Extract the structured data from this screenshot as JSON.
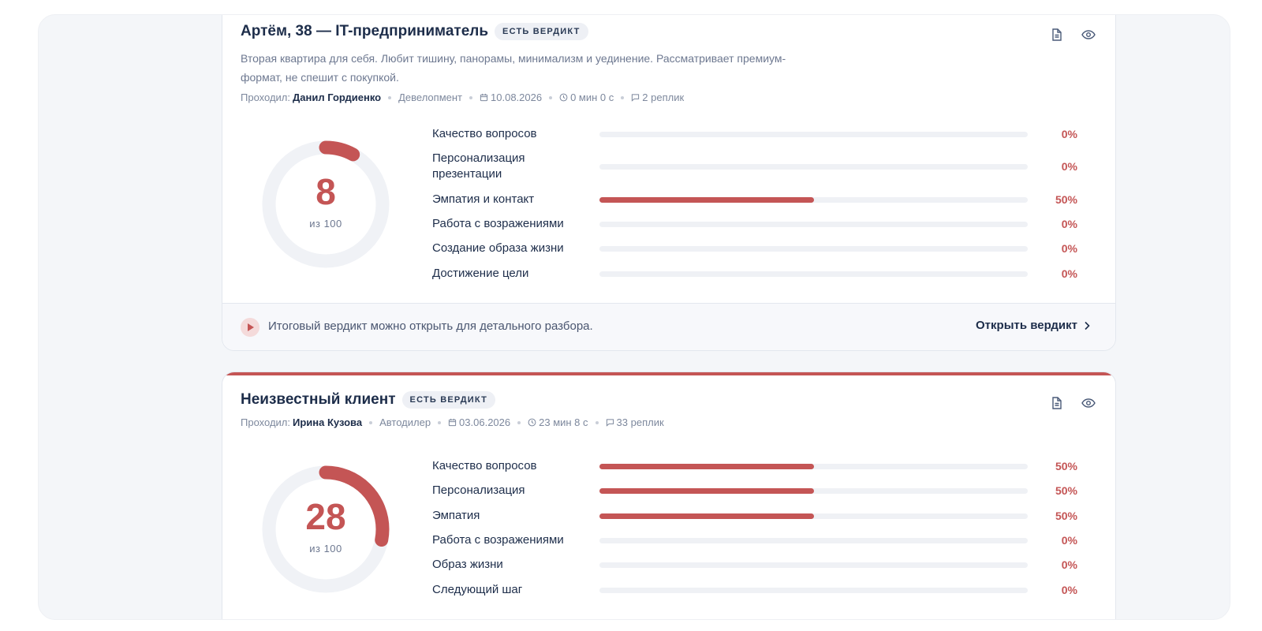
{
  "colors": {
    "accent": "#c45555",
    "track": "#eff1f5",
    "text": "#1d2d4a",
    "muted": "#6d7890"
  },
  "cards": [
    {
      "title": "Артём, 38 — IT-предприниматель",
      "badge": "ЕСТЬ ВЕРДИКТ",
      "description": "Вторая квартира для себя. Любит тишину, панорамы, минимализм и уединение. Рассматривает премиум-формат, не спешит с покупкой.",
      "meta": {
        "passed_label": "Проходил:",
        "person": "Данил Гордиенко",
        "department": "Девелопмент",
        "date": "10.08.2026",
        "duration": "0 мин 0 с",
        "replies": "2 реплик"
      },
      "score": "8",
      "score_of": "из 100",
      "score_value": 8,
      "metrics": [
        {
          "label": "Качество вопросов",
          "value": 0,
          "pct": "0%"
        },
        {
          "label": "Персонализация презентации",
          "value": 0,
          "pct": "0%"
        },
        {
          "label": "Эмпатия и контакт",
          "value": 50,
          "pct": "50%"
        },
        {
          "label": "Работа с возражениями",
          "value": 0,
          "pct": "0%"
        },
        {
          "label": "Создание образа жизни",
          "value": 0,
          "pct": "0%"
        },
        {
          "label": "Достижение цели",
          "value": 0,
          "pct": "0%"
        }
      ],
      "footer": {
        "text": "Итоговый вердикт можно открыть для детального разбора.",
        "link": "Открыть вердикт"
      }
    },
    {
      "title": "Неизвестный клиент",
      "badge": "ЕСТЬ ВЕРДИКТ",
      "meta": {
        "passed_label": "Проходил:",
        "person": "Ирина Кузова",
        "department": "Автодилер",
        "date": "03.06.2026",
        "duration": "23 мин 8 с",
        "replies": "33 реплик"
      },
      "score": "28",
      "score_of": "из 100",
      "score_value": 28,
      "metrics": [
        {
          "label": "Качество вопросов",
          "value": 50,
          "pct": "50%"
        },
        {
          "label": "Персонализация",
          "value": 50,
          "pct": "50%"
        },
        {
          "label": "Эмпатия",
          "value": 50,
          "pct": "50%"
        },
        {
          "label": "Работа с возражениями",
          "value": 0,
          "pct": "0%"
        },
        {
          "label": "Образ жизни",
          "value": 0,
          "pct": "0%"
        },
        {
          "label": "Следующий шаг",
          "value": 0,
          "pct": "0%"
        }
      ]
    }
  ]
}
